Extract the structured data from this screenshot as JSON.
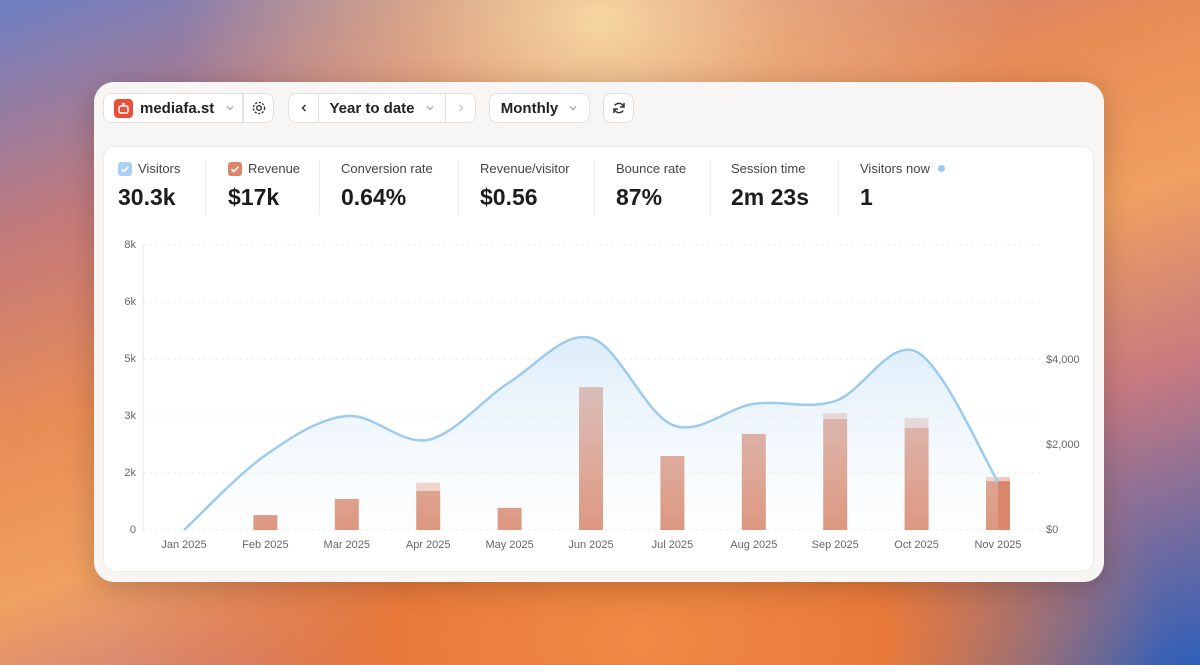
{
  "header": {
    "site": "mediafa.st",
    "period": "Year to date",
    "interval": "Monthly"
  },
  "metrics": [
    {
      "label": "Visitors",
      "value": "30.3k"
    },
    {
      "label": "Revenue",
      "value": "$17k"
    },
    {
      "label": "Conversion rate",
      "value": "0.64%"
    },
    {
      "label": "Revenue/visitor",
      "value": "$0.56"
    },
    {
      "label": "Bounce rate",
      "value": "87%"
    },
    {
      "label": "Session time",
      "value": "2m 23s"
    },
    {
      "label": "Visitors now",
      "value": "1"
    }
  ],
  "chart_data": {
    "type": "combo",
    "categories": [
      "Jan 2025",
      "Feb 2025",
      "Mar 2025",
      "Apr 2025",
      "May 2025",
      "Jun 2025",
      "Jul 2025",
      "Aug 2025",
      "Sep 2025",
      "Oct 2025",
      "Nov 2025"
    ],
    "series": [
      {
        "name": "Visitors",
        "type": "line",
        "color": "#9ccbee",
        "values": [
          0,
          2100,
          3200,
          2530,
          4150,
          5390,
          2950,
          3540,
          3620,
          5000,
          1350
        ]
      },
      {
        "name": "Revenue",
        "type": "bar",
        "axis": "y2",
        "color": "#d9866a",
        "values": [
          0,
          350,
          730,
          920,
          520,
          3360,
          1740,
          2260,
          2610,
          2400,
          1150
        ]
      },
      {
        "type": "bar",
        "axis": "y2",
        "color": "#f0c9bb",
        "values": [
          0,
          0,
          0,
          190,
          0,
          0,
          0,
          0,
          140,
          235,
          95
        ]
      }
    ],
    "ylim": [
      0,
      8000
    ],
    "yticks": [
      0,
      {
        "value": 1600,
        "label": "2k"
      },
      {
        "value": 3200,
        "label": "3k"
      },
      {
        "value": 4800,
        "label": "5k"
      },
      {
        "value": 6400,
        "label": "6k"
      },
      {
        "value": 8000,
        "label": "8k"
      }
    ],
    "y2lim": [
      0,
      6700
    ],
    "y2ticks": [
      {
        "value": 0,
        "label": "$0"
      },
      {
        "value": 2000,
        "label": "$2,000"
      },
      {
        "value": 4000,
        "label": "$4,000"
      }
    ],
    "grid": true
  }
}
